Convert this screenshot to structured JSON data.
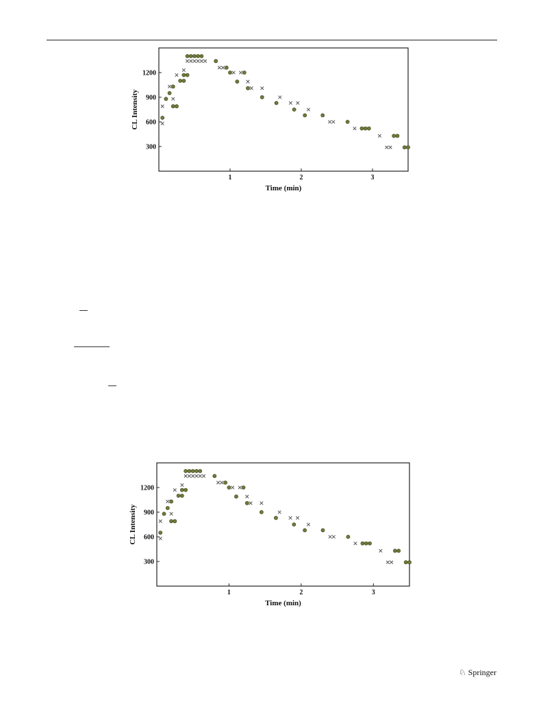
{
  "publisher": {
    "name": "Springer",
    "icon": "springer-horse-icon"
  },
  "colors": {
    "series_o": "#6f7a3a",
    "series_x": "#555555",
    "axis": "#222222"
  },
  "chart_data": [
    {
      "type": "scatter",
      "title": "",
      "xlabel": "Time (min)",
      "ylabel": "CL Intensity",
      "xlim": [
        0,
        3.5
      ],
      "ylim": [
        0,
        1500
      ],
      "xticks": [
        1,
        2,
        3
      ],
      "yticks": [
        300,
        600,
        900,
        1200
      ],
      "grid": false,
      "legend": "none",
      "series": [
        {
          "marker": "o",
          "points": [
            [
              0.05,
              650
            ],
            [
              0.1,
              880
            ],
            [
              0.15,
              950
            ],
            [
              0.2,
              1030
            ],
            [
              0.2,
              790
            ],
            [
              0.25,
              790
            ],
            [
              0.3,
              1100
            ],
            [
              0.35,
              1170
            ],
            [
              0.35,
              1100
            ],
            [
              0.4,
              1170
            ],
            [
              0.4,
              1400
            ],
            [
              0.45,
              1400
            ],
            [
              0.5,
              1400
            ],
            [
              0.55,
              1400
            ],
            [
              0.6,
              1400
            ],
            [
              0.8,
              1340
            ],
            [
              0.95,
              1260
            ],
            [
              1.0,
              1200
            ],
            [
              1.1,
              1090
            ],
            [
              1.2,
              1200
            ],
            [
              1.25,
              1010
            ],
            [
              1.45,
              900
            ],
            [
              1.65,
              830
            ],
            [
              1.9,
              750
            ],
            [
              2.05,
              680
            ],
            [
              2.3,
              680
            ],
            [
              2.65,
              600
            ],
            [
              2.85,
              520
            ],
            [
              2.9,
              520
            ],
            [
              2.95,
              520
            ],
            [
              3.3,
              430
            ],
            [
              3.35,
              430
            ],
            [
              3.45,
              290
            ],
            [
              3.5,
              290
            ]
          ]
        },
        {
          "marker": "x",
          "points": [
            [
              0.05,
              580
            ],
            [
              0.05,
              790
            ],
            [
              0.15,
              1030
            ],
            [
              0.2,
              880
            ],
            [
              0.25,
              1170
            ],
            [
              0.35,
              1230
            ],
            [
              0.4,
              1340
            ],
            [
              0.45,
              1340
            ],
            [
              0.5,
              1340
            ],
            [
              0.55,
              1340
            ],
            [
              0.6,
              1340
            ],
            [
              0.65,
              1340
            ],
            [
              0.85,
              1260
            ],
            [
              0.9,
              1260
            ],
            [
              1.05,
              1200
            ],
            [
              1.15,
              1200
            ],
            [
              1.25,
              1090
            ],
            [
              1.3,
              1010
            ],
            [
              1.45,
              1010
            ],
            [
              1.7,
              900
            ],
            [
              1.85,
              830
            ],
            [
              1.95,
              830
            ],
            [
              2.1,
              750
            ],
            [
              2.4,
              600
            ],
            [
              2.45,
              600
            ],
            [
              2.75,
              520
            ],
            [
              3.1,
              430
            ],
            [
              3.2,
              290
            ],
            [
              3.25,
              290
            ]
          ]
        }
      ]
    },
    {
      "type": "scatter",
      "title": "",
      "xlabel": "Time (min)",
      "ylabel": "CL Intensity",
      "xlim": [
        0,
        3.5
      ],
      "ylim": [
        0,
        1500
      ],
      "xticks": [
        1,
        2,
        3
      ],
      "yticks": [
        300,
        600,
        900,
        1200
      ],
      "grid": false,
      "legend": "none",
      "series": [
        {
          "marker": "o",
          "points": [
            [
              0.05,
              650
            ],
            [
              0.1,
              880
            ],
            [
              0.15,
              950
            ],
            [
              0.2,
              1030
            ],
            [
              0.2,
              790
            ],
            [
              0.25,
              790
            ],
            [
              0.3,
              1100
            ],
            [
              0.35,
              1170
            ],
            [
              0.35,
              1100
            ],
            [
              0.4,
              1170
            ],
            [
              0.4,
              1400
            ],
            [
              0.45,
              1400
            ],
            [
              0.5,
              1400
            ],
            [
              0.55,
              1400
            ],
            [
              0.6,
              1400
            ],
            [
              0.8,
              1340
            ],
            [
              0.95,
              1260
            ],
            [
              1.0,
              1200
            ],
            [
              1.1,
              1090
            ],
            [
              1.2,
              1200
            ],
            [
              1.25,
              1010
            ],
            [
              1.45,
              900
            ],
            [
              1.65,
              830
            ],
            [
              1.9,
              750
            ],
            [
              2.05,
              680
            ],
            [
              2.3,
              680
            ],
            [
              2.65,
              600
            ],
            [
              2.85,
              520
            ],
            [
              2.9,
              520
            ],
            [
              2.95,
              520
            ],
            [
              3.3,
              430
            ],
            [
              3.35,
              430
            ],
            [
              3.45,
              290
            ],
            [
              3.5,
              290
            ]
          ]
        },
        {
          "marker": "x",
          "points": [
            [
              0.05,
              580
            ],
            [
              0.05,
              790
            ],
            [
              0.15,
              1030
            ],
            [
              0.2,
              880
            ],
            [
              0.25,
              1170
            ],
            [
              0.35,
              1230
            ],
            [
              0.4,
              1340
            ],
            [
              0.45,
              1340
            ],
            [
              0.5,
              1340
            ],
            [
              0.55,
              1340
            ],
            [
              0.6,
              1340
            ],
            [
              0.65,
              1340
            ],
            [
              0.85,
              1260
            ],
            [
              0.9,
              1260
            ],
            [
              1.05,
              1200
            ],
            [
              1.15,
              1200
            ],
            [
              1.25,
              1090
            ],
            [
              1.3,
              1010
            ],
            [
              1.45,
              1010
            ],
            [
              1.7,
              900
            ],
            [
              1.85,
              830
            ],
            [
              1.95,
              830
            ],
            [
              2.1,
              750
            ],
            [
              2.4,
              600
            ],
            [
              2.45,
              600
            ],
            [
              2.75,
              520
            ],
            [
              3.1,
              430
            ],
            [
              3.2,
              290
            ],
            [
              3.25,
              290
            ]
          ]
        }
      ]
    }
  ]
}
